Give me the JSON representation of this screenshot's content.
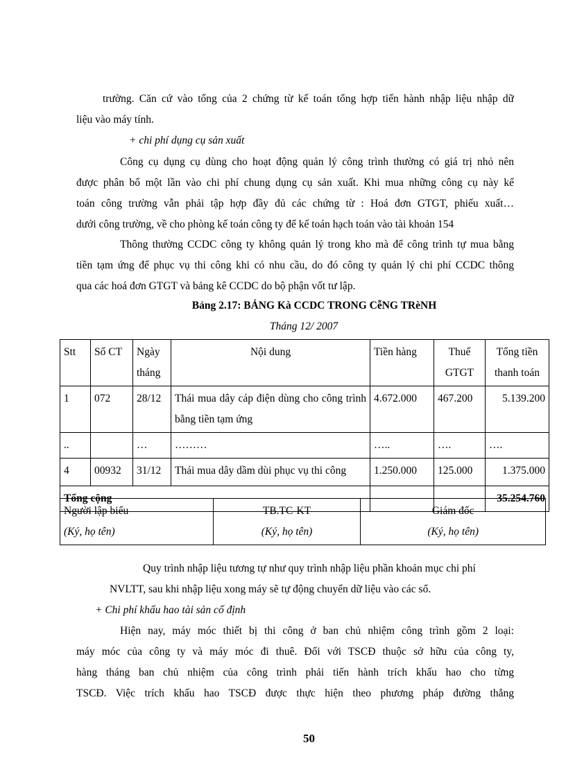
{
  "paragraphs_top": [
    "trường. Căn cứ vào tổng của 2 chứng từ kế toán tổng hợp tiến hành nhập liệu nhập dữ",
    "liệu vào máy tính.",
    "+  chi phí dụng cụ sản xuất",
    "Công cụ dụng cụ dùng cho hoạt động quản lý công trình thường có giá trị nhỏ nên",
    "được phân bổ một lần vào chi phí chung dụng cụ sản xuất. Khi mua những công cụ này kế",
    "toán công trường vẫn phải tập hợp đầy đủ các chứng từ : Hoá đơn GTGT, phiếu xuất…",
    "dưới công trường, về cho phòng kế toán công ty để kế toán hạch toán vào tài khoản 154",
    "Thông thường CCDC công ty không quản lý trong kho mà để công trình tự mua bằng",
    "tiền tạm ứng để phục vụ thi công khi có nhu cầu, do đó công ty quản lý chi phí CCDC thông",
    "qua các hoá đơn GTGT và bảng kê CCDC do bộ phận vốt tư lập."
  ],
  "table_title": "Bảng 2.17: BẢNG Kà CCDC TRONG CễNG TRèNH",
  "table_subtitle": "Tháng 12/ 2007",
  "table": {
    "headers": [
      [
        "Stt"
      ],
      [
        "Số CT"
      ],
      [
        "Ngày",
        "tháng"
      ],
      [
        "Nội dung"
      ],
      [
        "Tiền hàng"
      ],
      [
        "Thuế",
        "GTGT"
      ],
      [
        "Tổng tiền",
        "thanh toán"
      ]
    ],
    "rows": [
      [
        "1",
        "072",
        "28/12",
        "Thái mua dây cáp điện dùng cho công trình bằng tiền tạm ứng",
        "4.672.000",
        "467.200",
        "5.139.200"
      ],
      [
        "..",
        "",
        "…",
        "………",
        "…..",
        "….",
        "…."
      ],
      [
        "4",
        "00932",
        "31/12",
        "Thái mua dây dầm dùi phục vụ thi công",
        "1.250.000",
        "125.000",
        "1.375.000"
      ]
    ],
    "total_label": "Tổng cộng",
    "total_value": "35.254.760"
  },
  "signatures": [
    {
      "role": "Người lập biểu",
      "note": "(Ký, họ tên)"
    },
    {
      "role": "TB.TC-KT",
      "note": "(Ký, họ tên)"
    },
    {
      "role": "Giám đốc",
      "note": "(Ký, họ tên)"
    }
  ],
  "paragraphs_bottom": [
    "Quy trình nhập liệu tương tự như quy trình nhập liệu phần khoản mục chi phí",
    "NVLTT, sau khi nhập liệu xong máy sẽ tự động chuyển dữ liệu vào các sổ.",
    "+ Chi phí khấu hao tài sản cố định",
    "Hiện nay, máy móc thiết bị thi công ở ban chủ nhiệm công trình gồm 2 loại:",
    "máy móc của công ty và máy móc đi thuê. Đối với TSCĐ thuộc sở hữu của công ty,",
    "hàng tháng ban chủ nhiệm của công trình phải tiến hành trích khấu hao cho từng",
    "TSCĐ.  Việc trích khấu hao TSCĐ được thực hiện theo phương pháp đường thẳng"
  ],
  "page_number": "50"
}
